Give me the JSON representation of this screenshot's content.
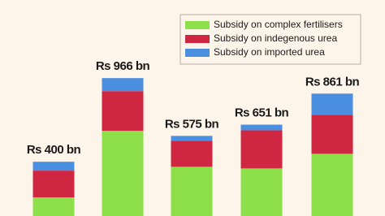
{
  "chart_data": {
    "type": "stacked-bar",
    "series": [
      {
        "name": "Subsidy on complex fertilisers",
        "color": "#8de04a",
        "values": [
          159,
          609,
          366,
          355,
          454
        ]
      },
      {
        "name": "Subsidy on indegenous urea",
        "color": "#cf2641",
        "values": [
          181,
          269,
          176,
          258,
          264
        ]
      },
      {
        "name": "Subsidy on imported urea",
        "color": "#4b8fe0",
        "values": [
          60,
          88,
          33,
          38,
          143
        ]
      }
    ],
    "totals": {
      "values": [
        400,
        966,
        575,
        651,
        861
      ],
      "value_labels": [
        "Rs 400 bn",
        "Rs 966 bn",
        "Rs 575 bn",
        "Rs 651 bn",
        "Rs 861 bn"
      ]
    }
  }
}
